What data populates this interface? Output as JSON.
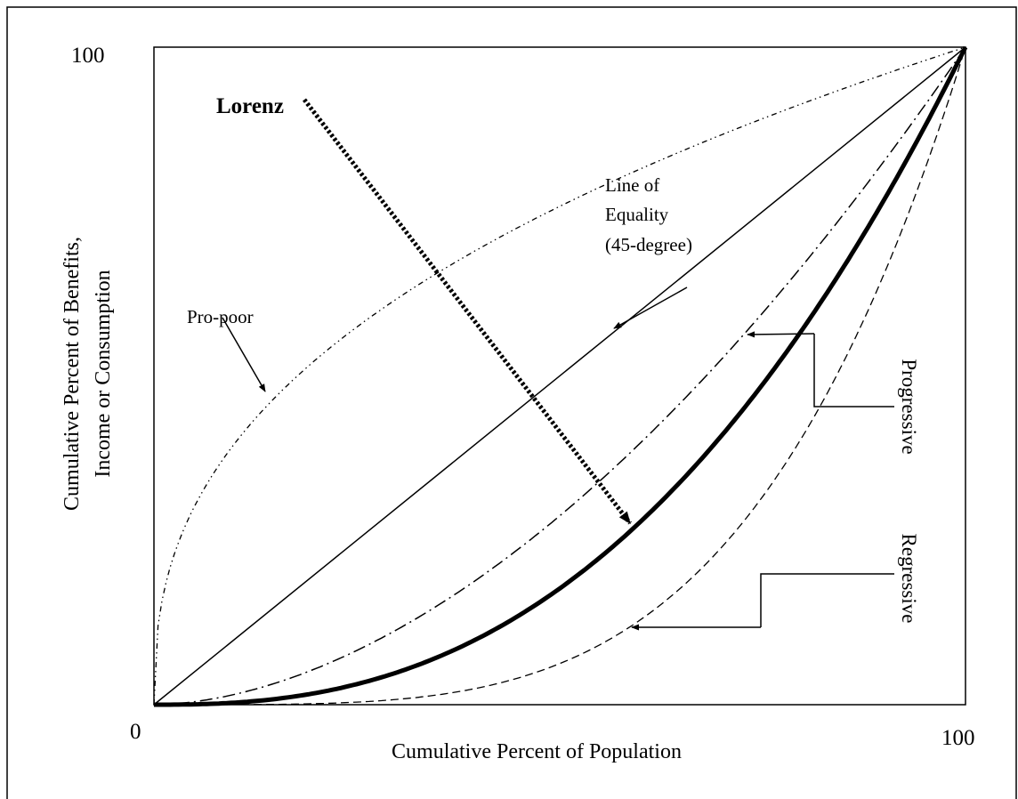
{
  "axes": {
    "y_label_line1": "Cumulative Percent of Benefits,",
    "y_label_line2": "Income or Consumption",
    "x_label": "Cumulative Percent of Population",
    "origin": "0",
    "y_max": "100",
    "x_max": "100"
  },
  "labels": {
    "lorenz": "Lorenz",
    "equality_line1": "Line of",
    "equality_line2": "Equality",
    "equality_line3": "(45-degree)",
    "pro_poor": "Pro-poor",
    "progressive": "Progressive",
    "regressive": "Regressive"
  }
}
